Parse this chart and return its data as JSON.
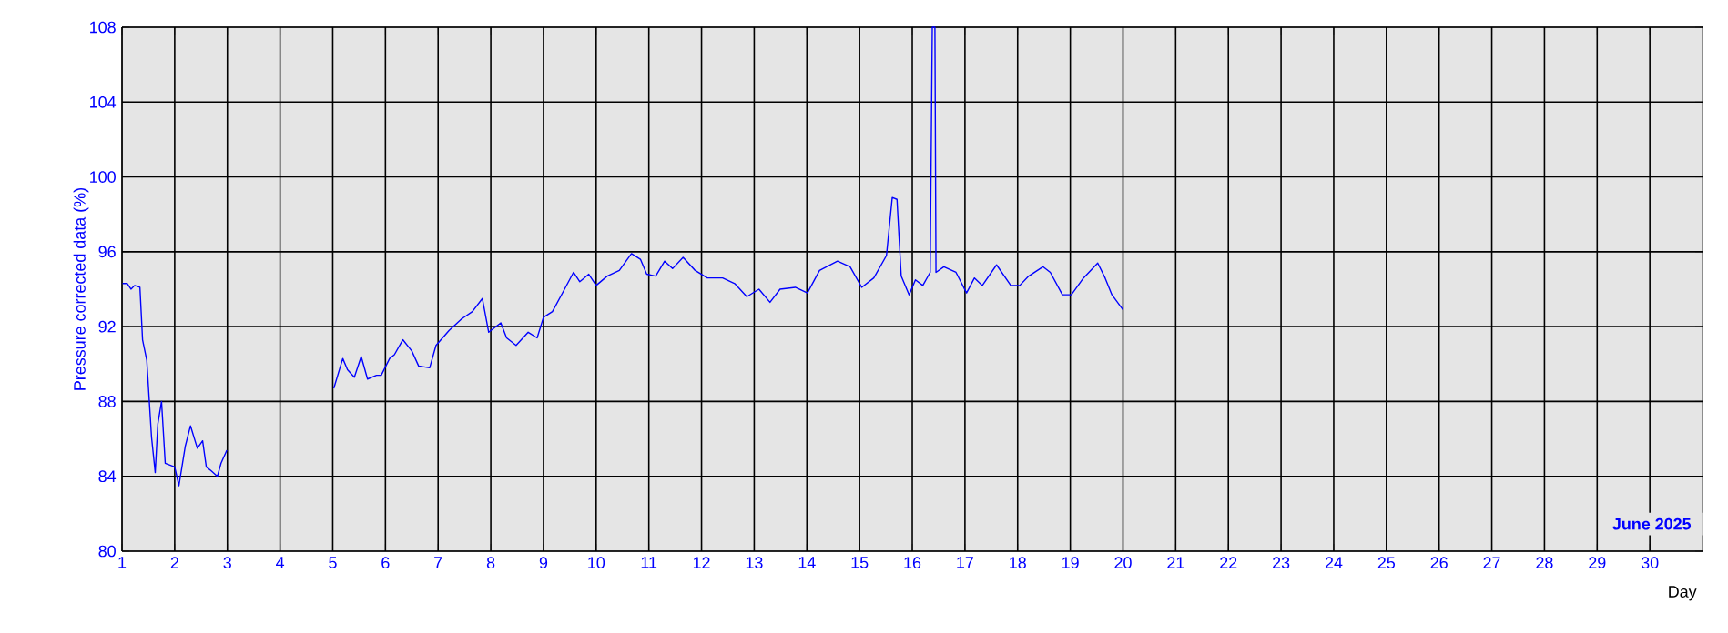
{
  "chart_data": {
    "type": "line",
    "ylabel": "Pressure corrected data (%)",
    "xlabel": "Day",
    "annotations": [
      "June 2025"
    ],
    "xlim": [
      1,
      31
    ],
    "xticks": [
      1,
      2,
      3,
      4,
      5,
      6,
      7,
      8,
      9,
      10,
      11,
      12,
      13,
      14,
      15,
      16,
      17,
      18,
      19,
      20,
      21,
      22,
      23,
      24,
      25,
      26,
      27,
      28,
      29,
      30
    ],
    "ylim": [
      80,
      108
    ],
    "yticks": [
      80,
      84,
      88,
      92,
      96,
      100,
      104,
      108
    ],
    "grid": true,
    "marker": "none",
    "line_style": "solid",
    "series": [
      {
        "color": "#0000ff",
        "x": [
          1.01,
          1.1,
          1.17,
          1.24,
          1.34,
          1.39,
          1.47,
          1.56,
          1.63,
          1.68,
          1.75,
          1.82,
          1.91,
          2.0,
          2.08,
          2.2,
          2.3,
          2.43,
          2.53,
          2.6,
          2.69,
          2.81,
          2.88,
          2.99,
          4.0,
          5.02,
          5.19,
          5.28,
          5.41,
          5.54,
          5.66,
          5.83,
          5.92,
          6.08,
          6.17,
          6.33,
          6.5,
          6.63,
          6.84,
          6.96,
          7.21,
          7.44,
          7.65,
          7.84,
          7.96,
          8.19,
          8.3,
          8.48,
          8.71,
          8.88,
          9.0,
          9.17,
          9.4,
          9.57,
          9.69,
          9.86,
          10.0,
          10.21,
          10.44,
          10.67,
          10.84,
          10.96,
          11.13,
          11.3,
          11.45,
          11.65,
          11.88,
          12.11,
          12.4,
          12.63,
          12.86,
          13.09,
          13.3,
          13.49,
          13.78,
          14.01,
          14.24,
          14.58,
          14.82,
          15.04,
          15.27,
          15.51,
          15.62,
          15.71,
          15.79,
          15.94,
          16.06,
          16.2,
          16.34,
          16.38,
          16.43,
          16.45,
          16.6,
          16.83,
          17.03,
          17.18,
          17.33,
          17.6,
          17.87,
          18.04,
          18.21,
          18.48,
          18.62,
          18.85,
          19.02,
          19.25,
          19.52,
          19.66,
          19.79,
          20.0
        ],
        "values": [
          94.3,
          94.3,
          94.0,
          94.2,
          94.1,
          91.3,
          90.2,
          86.1,
          84.2,
          86.8,
          88.0,
          84.7,
          84.6,
          84.5,
          83.5,
          85.6,
          86.7,
          85.5,
          85.9,
          84.5,
          84.3,
          84.0,
          84.7,
          85.4,
          null,
          88.7,
          90.3,
          89.7,
          89.3,
          90.4,
          89.2,
          89.4,
          89.4,
          90.3,
          90.5,
          91.3,
          90.7,
          89.9,
          89.8,
          91.0,
          91.8,
          92.4,
          92.8,
          93.5,
          91.7,
          92.2,
          91.4,
          91.0,
          91.7,
          91.4,
          92.5,
          92.8,
          94.0,
          94.9,
          94.4,
          94.8,
          94.2,
          94.7,
          95.0,
          95.9,
          95.6,
          94.8,
          94.7,
          95.5,
          95.1,
          95.7,
          95.0,
          94.6,
          94.6,
          94.3,
          93.6,
          94.0,
          93.3,
          94.0,
          94.1,
          93.8,
          95.0,
          95.5,
          95.2,
          94.1,
          94.6,
          95.8,
          98.9,
          98.8,
          94.7,
          93.7,
          94.5,
          94.2,
          94.9,
          108,
          108,
          94.9,
          95.2,
          94.9,
          93.8,
          94.6,
          94.2,
          95.3,
          94.2,
          94.2,
          94.7,
          95.2,
          94.9,
          93.7,
          93.7,
          94.6,
          95.4,
          94.6,
          93.7,
          92.9
        ]
      }
    ]
  }
}
